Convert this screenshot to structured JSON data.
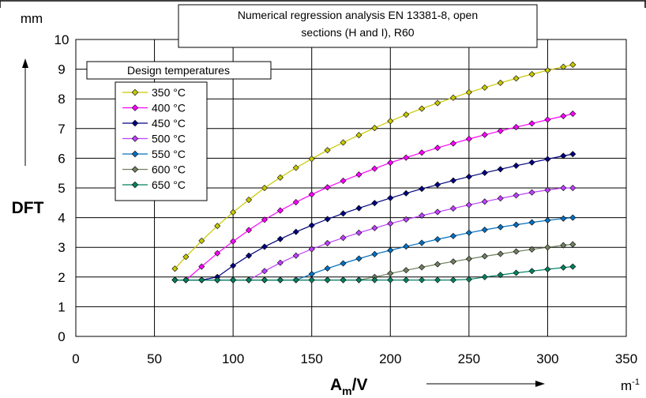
{
  "chart_data": {
    "type": "line",
    "title": "Numerical regression analysis EN 13381-8, open sections (H and I), R60",
    "title_lines": [
      "Numerical regression analysis EN 13381-8, open",
      "sections (H and I), R60"
    ],
    "xlabel_main": "A",
    "xlabel_sub": "m",
    "xlabel_tail": "/V",
    "xunit": "m",
    "xunit_sup": "-1",
    "ylabel": "DFT",
    "yunit": "mm",
    "xlim": [
      0,
      350
    ],
    "ylim": [
      0,
      10
    ],
    "xticks": [
      0,
      50,
      100,
      150,
      200,
      250,
      300,
      350
    ],
    "yticks": [
      0,
      1,
      2,
      3,
      4,
      5,
      6,
      7,
      8,
      9,
      10
    ],
    "grid": true,
    "legend_title": "Design temperatures",
    "legend_position": "top-left",
    "x": [
      63,
      70,
      80,
      90,
      100,
      110,
      120,
      130,
      140,
      150,
      160,
      170,
      180,
      190,
      200,
      210,
      220,
      230,
      240,
      250,
      260,
      270,
      280,
      290,
      300,
      310,
      316
    ],
    "series": [
      {
        "name": "350 °C",
        "color": "#c8c800",
        "marker": "diamond",
        "values": [
          2.28,
          2.68,
          3.22,
          3.72,
          4.18,
          4.6,
          5.0,
          5.35,
          5.68,
          5.98,
          6.27,
          6.53,
          6.78,
          7.02,
          7.25,
          7.47,
          7.67,
          7.86,
          8.04,
          8.22,
          8.38,
          8.54,
          8.69,
          8.83,
          8.96,
          9.08,
          9.15
        ]
      },
      {
        "name": "400 °C",
        "color": "#ff00ff",
        "marker": "diamond",
        "values": [
          1.9,
          1.9,
          2.35,
          2.8,
          3.2,
          3.58,
          3.93,
          4.24,
          4.52,
          4.78,
          5.02,
          5.24,
          5.45,
          5.65,
          5.85,
          6.02,
          6.19,
          6.35,
          6.5,
          6.65,
          6.79,
          6.92,
          7.05,
          7.17,
          7.3,
          7.42,
          7.5
        ]
      },
      {
        "name": "450 °C",
        "color": "#000080",
        "marker": "diamond",
        "values": [
          1.9,
          1.9,
          1.9,
          2.0,
          2.38,
          2.72,
          3.02,
          3.28,
          3.52,
          3.74,
          3.95,
          4.14,
          4.32,
          4.49,
          4.66,
          4.82,
          4.97,
          5.11,
          5.25,
          5.38,
          5.51,
          5.63,
          5.75,
          5.86,
          5.97,
          6.08,
          6.14
        ]
      },
      {
        "name": "500 °C",
        "color": "#c040ff",
        "marker": "diamond",
        "values": [
          1.9,
          1.9,
          1.9,
          1.9,
          1.9,
          1.9,
          2.2,
          2.48,
          2.72,
          2.94,
          3.14,
          3.32,
          3.49,
          3.65,
          3.8,
          3.94,
          4.07,
          4.19,
          4.31,
          4.43,
          4.54,
          4.65,
          4.75,
          4.85,
          4.93,
          5.0,
          5.0
        ]
      },
      {
        "name": "550 °C",
        "color": "#0070c0",
        "marker": "diamond",
        "values": [
          1.9,
          1.9,
          1.9,
          1.9,
          1.9,
          1.9,
          1.9,
          1.9,
          1.9,
          2.1,
          2.29,
          2.46,
          2.62,
          2.77,
          2.9,
          3.03,
          3.15,
          3.27,
          3.38,
          3.49,
          3.59,
          3.68,
          3.76,
          3.84,
          3.91,
          3.97,
          4.0
        ]
      },
      {
        "name": "600 °C",
        "color": "#708060",
        "marker": "diamond",
        "values": [
          1.9,
          1.9,
          1.9,
          1.9,
          1.9,
          1.9,
          1.9,
          1.9,
          1.9,
          1.9,
          1.9,
          1.9,
          1.9,
          2.0,
          2.12,
          2.23,
          2.33,
          2.43,
          2.52,
          2.61,
          2.7,
          2.78,
          2.86,
          2.93,
          3.0,
          3.07,
          3.1
        ]
      },
      {
        "name": "650 °C",
        "color": "#008060",
        "marker": "diamond",
        "values": [
          1.9,
          1.9,
          1.9,
          1.9,
          1.9,
          1.9,
          1.9,
          1.9,
          1.9,
          1.9,
          1.9,
          1.9,
          1.9,
          1.9,
          1.9,
          1.9,
          1.9,
          1.9,
          1.9,
          1.92,
          2.0,
          2.07,
          2.14,
          2.2,
          2.26,
          2.32,
          2.35
        ]
      }
    ]
  }
}
